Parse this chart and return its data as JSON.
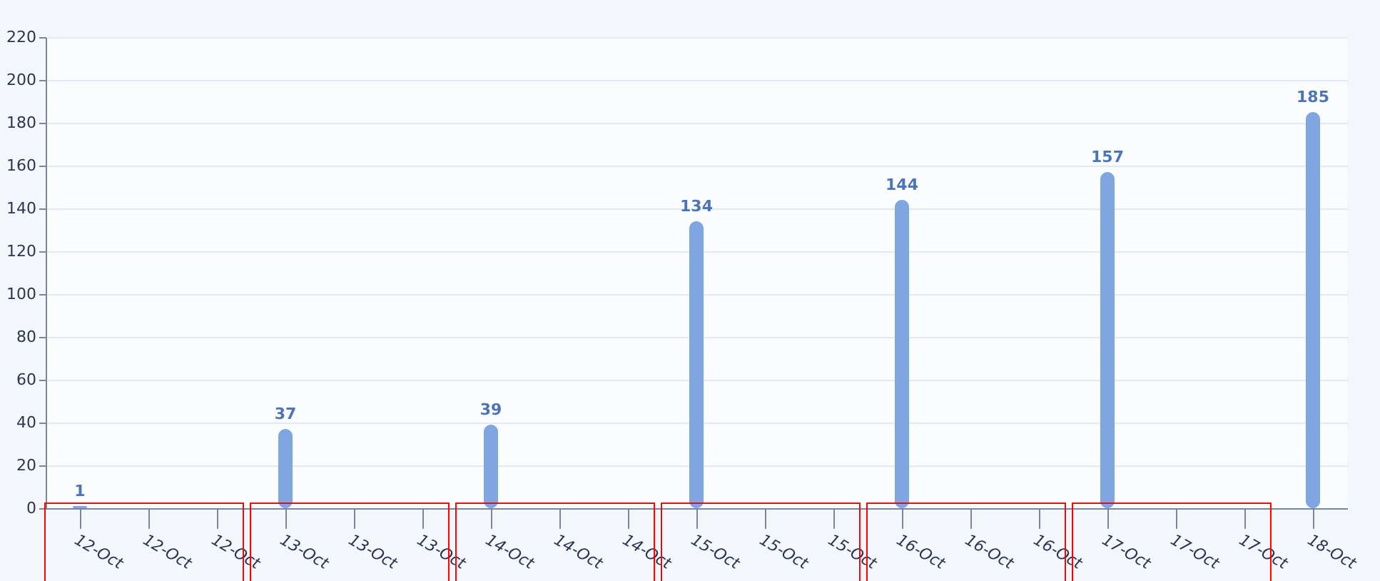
{
  "chart_data": {
    "type": "bar",
    "categories": [
      "12-Oct",
      "12-Oct",
      "12-Oct",
      "13-Oct",
      "13-Oct",
      "13-Oct",
      "14-Oct",
      "14-Oct",
      "14-Oct",
      "15-Oct",
      "15-Oct",
      "15-Oct",
      "16-Oct",
      "16-Oct",
      "16-Oct",
      "17-Oct",
      "17-Oct",
      "17-Oct",
      "18-Oct"
    ],
    "values": [
      1,
      null,
      null,
      37,
      null,
      null,
      39,
      null,
      null,
      134,
      null,
      null,
      144,
      null,
      null,
      157,
      null,
      null,
      185
    ],
    "color": "#7fa6e0",
    "data_labels": true,
    "ylim": [
      0,
      220
    ],
    "yticks": [
      0,
      20,
      40,
      60,
      80,
      100,
      120,
      140,
      160,
      180,
      200,
      220
    ],
    "grid": "y"
  }
}
